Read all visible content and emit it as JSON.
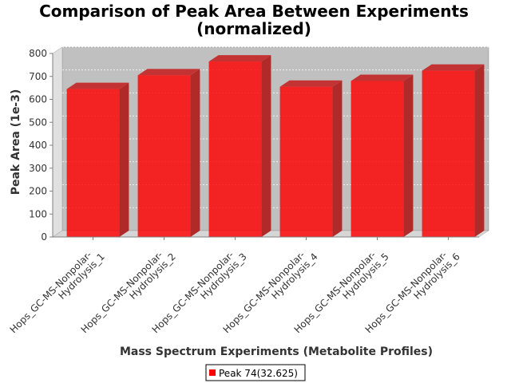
{
  "chart_data": {
    "type": "bar",
    "title_lines": [
      "Comparison of Peak Area Between Experiments",
      "(normalized)"
    ],
    "xlabel": "Mass Spectrum Experiments (Metabolite Profiles)",
    "ylabel": "Peak Area (1e-3)",
    "ylim": [
      0,
      800
    ],
    "yticks": [
      0,
      100,
      200,
      300,
      400,
      500,
      600,
      700,
      800
    ],
    "categories": [
      [
        "Hops_GC-MS-Nonpolar-",
        "Hydrolysis_1"
      ],
      [
        "Hops_GC-MS-Nonpolar-",
        "Hydrolysis_2"
      ],
      [
        "Hops_GC-MS-Nonpolar-",
        "Hydrolysis_3"
      ],
      [
        "Hops_GC-MS-Nonpolar-",
        "Hydrolysis_4"
      ],
      [
        "Hops_GC-MS-Nonpolar-",
        "Hydrolysis_5"
      ],
      [
        "Hops_GC-MS-Nonpolar-",
        "Hydrolysis_6"
      ]
    ],
    "series": [
      {
        "name": "Peak 74(32.625)",
        "color": "#ff0000",
        "values": [
          645,
          705,
          765,
          655,
          680,
          725
        ]
      }
    ],
    "grid": true,
    "legend_position": "bottom"
  }
}
